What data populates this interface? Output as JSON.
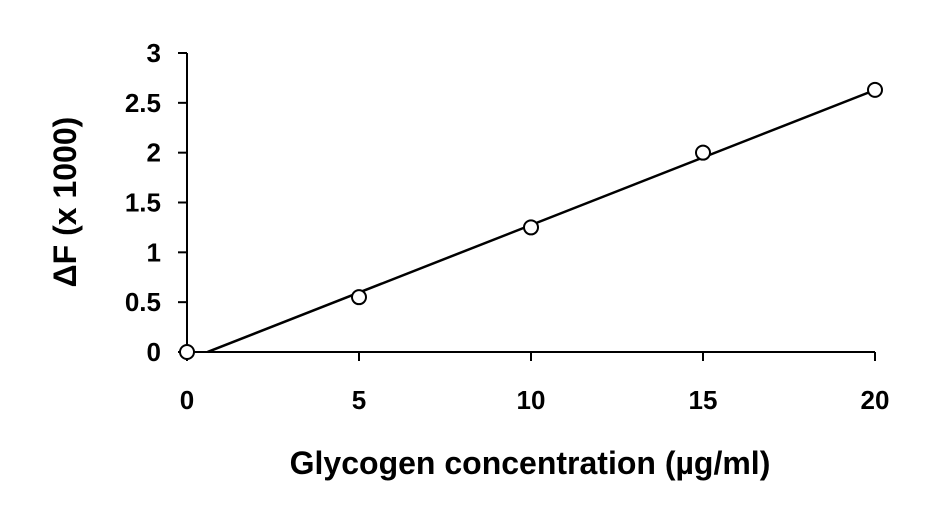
{
  "chart_data": {
    "type": "scatter",
    "xlabel": "Glycogen concentration (µg/ml)",
    "ylabel": "ΔF (x 1000)",
    "xlim": [
      0,
      20
    ],
    "ylim": [
      0,
      3
    ],
    "x_ticks": [
      "0",
      "5",
      "10",
      "15",
      "20"
    ],
    "y_ticks": [
      "0",
      "0.5",
      "1",
      "1.5",
      "2",
      "2.5",
      "3"
    ],
    "grid": false,
    "legend": "none",
    "series": [
      {
        "marker": "open-circle",
        "x": [
          0,
          5,
          10,
          15,
          20
        ],
        "y": [
          0,
          0.55,
          1.25,
          2.0,
          2.63
        ]
      }
    ],
    "trendline": {
      "type": "linear",
      "x_range": [
        0.6,
        20
      ],
      "slope": 0.1355,
      "intercept": -0.081
    },
    "colors": {
      "axis": "#000000",
      "marker_stroke": "#000000",
      "marker_fill": "#ffffff",
      "trendline": "#000000"
    }
  }
}
